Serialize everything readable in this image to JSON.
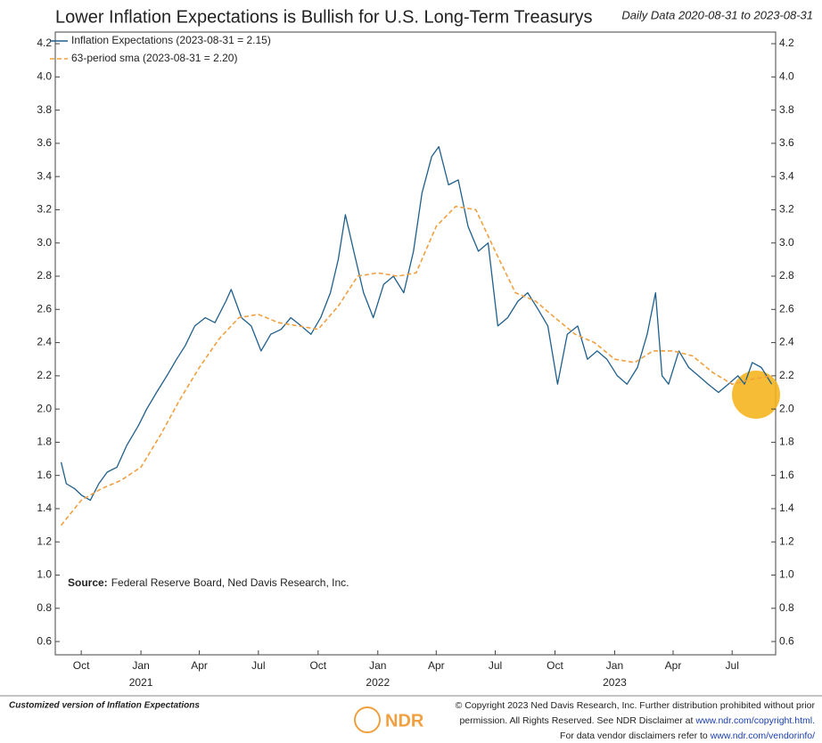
{
  "chart_data": {
    "type": "line",
    "title": "Lower Inflation Expectations is Bullish for U.S. Long-Term Treasurys",
    "subtitle": "Daily Data 2020-08-31 to 2023-08-31",
    "source_label": "Source:",
    "source": "Federal Reserve Board, Ned Davis Research, Inc.",
    "xlim": [
      "2020-08-22",
      "2023-09-06"
    ],
    "xticks": [
      {
        "value": "2020-10-01",
        "label": "Oct"
      },
      {
        "value": "2021-01-01",
        "label": "Jan"
      },
      {
        "value": "2021-04-01",
        "label": "Apr"
      },
      {
        "value": "2021-07-01",
        "label": "Jul"
      },
      {
        "value": "2021-10-01",
        "label": "Oct"
      },
      {
        "value": "2022-01-01",
        "label": "Jan"
      },
      {
        "value": "2022-04-01",
        "label": "Apr"
      },
      {
        "value": "2022-07-01",
        "label": "Jul"
      },
      {
        "value": "2022-10-01",
        "label": "Oct"
      },
      {
        "value": "2023-01-01",
        "label": "Jan"
      },
      {
        "value": "2023-04-01",
        "label": "Apr"
      },
      {
        "value": "2023-07-01",
        "label": "Jul"
      }
    ],
    "year_labels": [
      {
        "value": "2021-01-01",
        "label": "2021"
      },
      {
        "value": "2022-01-01",
        "label": "2022"
      },
      {
        "value": "2023-01-01",
        "label": "2023"
      }
    ],
    "ylim": [
      0.52,
      4.27
    ],
    "yticks": [
      0.6,
      0.8,
      {
        "value": 1,
        "label": "1.0"
      },
      1.2,
      1.4,
      1.6,
      1.8,
      {
        "value": 2,
        "label": "2.0"
      },
      2.2,
      2.4,
      2.6,
      2.8,
      {
        "value": 3,
        "label": "3.0"
      },
      3.2,
      3.4,
      3.6,
      3.8,
      {
        "value": 4,
        "label": "4.0"
      },
      4.2
    ],
    "series": [
      {
        "name": "Inflation Expectations (2023-08-31 = 2.15)",
        "color": "#1f5f8b",
        "dashed": false,
        "x": [
          "2020-08-31",
          "2020-09-08",
          "2020-09-21",
          "2020-10-02",
          "2020-10-15",
          "2020-10-28",
          "2020-11-10",
          "2020-11-25",
          "2020-12-10",
          "2020-12-28",
          "2021-01-10",
          "2021-01-25",
          "2021-02-10",
          "2021-02-25",
          "2021-03-10",
          "2021-03-25",
          "2021-04-10",
          "2021-04-25",
          "2021-05-12",
          "2021-05-20",
          "2021-06-05",
          "2021-06-20",
          "2021-07-05",
          "2021-07-20",
          "2021-08-05",
          "2021-08-20",
          "2021-09-05",
          "2021-09-20",
          "2021-10-05",
          "2021-10-20",
          "2021-11-01",
          "2021-11-12",
          "2021-11-25",
          "2021-12-10",
          "2021-12-25",
          "2022-01-10",
          "2022-01-25",
          "2022-02-10",
          "2022-02-25",
          "2022-03-10",
          "2022-03-25",
          "2022-04-05",
          "2022-04-20",
          "2022-05-05",
          "2022-05-20",
          "2022-06-05",
          "2022-06-20",
          "2022-07-05",
          "2022-07-20",
          "2022-08-05",
          "2022-08-20",
          "2022-09-05",
          "2022-09-20",
          "2022-10-05",
          "2022-10-20",
          "2022-11-05",
          "2022-11-20",
          "2022-12-05",
          "2022-12-20",
          "2023-01-05",
          "2023-01-20",
          "2023-02-05",
          "2023-02-20",
          "2023-03-05",
          "2023-03-15",
          "2023-03-25",
          "2023-04-10",
          "2023-04-25",
          "2023-05-10",
          "2023-05-25",
          "2023-06-10",
          "2023-06-25",
          "2023-07-10",
          "2023-07-20",
          "2023-08-01",
          "2023-08-15",
          "2023-08-31"
        ],
        "values": [
          1.68,
          1.55,
          1.52,
          1.48,
          1.45,
          1.55,
          1.62,
          1.65,
          1.78,
          1.9,
          2.0,
          2.1,
          2.2,
          2.3,
          2.38,
          2.5,
          2.55,
          2.52,
          2.65,
          2.72,
          2.55,
          2.5,
          2.35,
          2.45,
          2.48,
          2.55,
          2.5,
          2.45,
          2.55,
          2.7,
          2.9,
          3.17,
          2.95,
          2.7,
          2.55,
          2.75,
          2.8,
          2.7,
          2.95,
          3.3,
          3.52,
          3.58,
          3.35,
          3.38,
          3.1,
          2.95,
          3.0,
          2.5,
          2.55,
          2.65,
          2.7,
          2.6,
          2.5,
          2.15,
          2.45,
          2.5,
          2.3,
          2.35,
          2.3,
          2.2,
          2.15,
          2.25,
          2.45,
          2.7,
          2.2,
          2.15,
          2.35,
          2.25,
          2.2,
          2.15,
          2.1,
          2.15,
          2.2,
          2.15,
          2.28,
          2.25,
          2.15
        ]
      },
      {
        "name": "63-period sma (2023-08-31 = 2.20)",
        "color": "#f0a040",
        "dashed": true,
        "x": [
          "2020-08-31",
          "2020-10-01",
          "2020-11-01",
          "2020-12-01",
          "2021-01-01",
          "2021-02-01",
          "2021-03-01",
          "2021-04-01",
          "2021-05-01",
          "2021-06-01",
          "2021-07-01",
          "2021-08-01",
          "2021-09-01",
          "2021-10-01",
          "2021-11-01",
          "2021-12-01",
          "2022-01-01",
          "2022-02-01",
          "2022-03-01",
          "2022-04-01",
          "2022-05-01",
          "2022-06-01",
          "2022-07-01",
          "2022-08-01",
          "2022-09-01",
          "2022-10-01",
          "2022-11-01",
          "2022-12-01",
          "2023-01-01",
          "2023-02-01",
          "2023-03-01",
          "2023-04-01",
          "2023-05-01",
          "2023-06-01",
          "2023-07-01",
          "2023-08-01",
          "2023-08-31"
        ],
        "values": [
          1.3,
          1.45,
          1.52,
          1.57,
          1.65,
          1.85,
          2.05,
          2.25,
          2.42,
          2.55,
          2.57,
          2.52,
          2.5,
          2.48,
          2.62,
          2.8,
          2.82,
          2.8,
          2.82,
          3.1,
          3.22,
          3.2,
          2.95,
          2.7,
          2.65,
          2.55,
          2.45,
          2.4,
          2.3,
          2.28,
          2.35,
          2.35,
          2.32,
          2.22,
          2.15,
          2.18,
          2.2
        ]
      }
    ],
    "footer_left": "Customized version of Inflation Expectations",
    "footer_logo": "NDR",
    "footer_lines": [
      [
        "© Copyright 2023 Ned Davis Research, Inc. Further distribution prohibited without prior"
      ],
      [
        "permission. All Rights Reserved. See NDR Disclaimer at ",
        "www.ndr.com/copyright.html."
      ],
      [
        "For data vendor disclaimers refer to ",
        "www.ndr.com/vendorinfo/"
      ]
    ]
  }
}
